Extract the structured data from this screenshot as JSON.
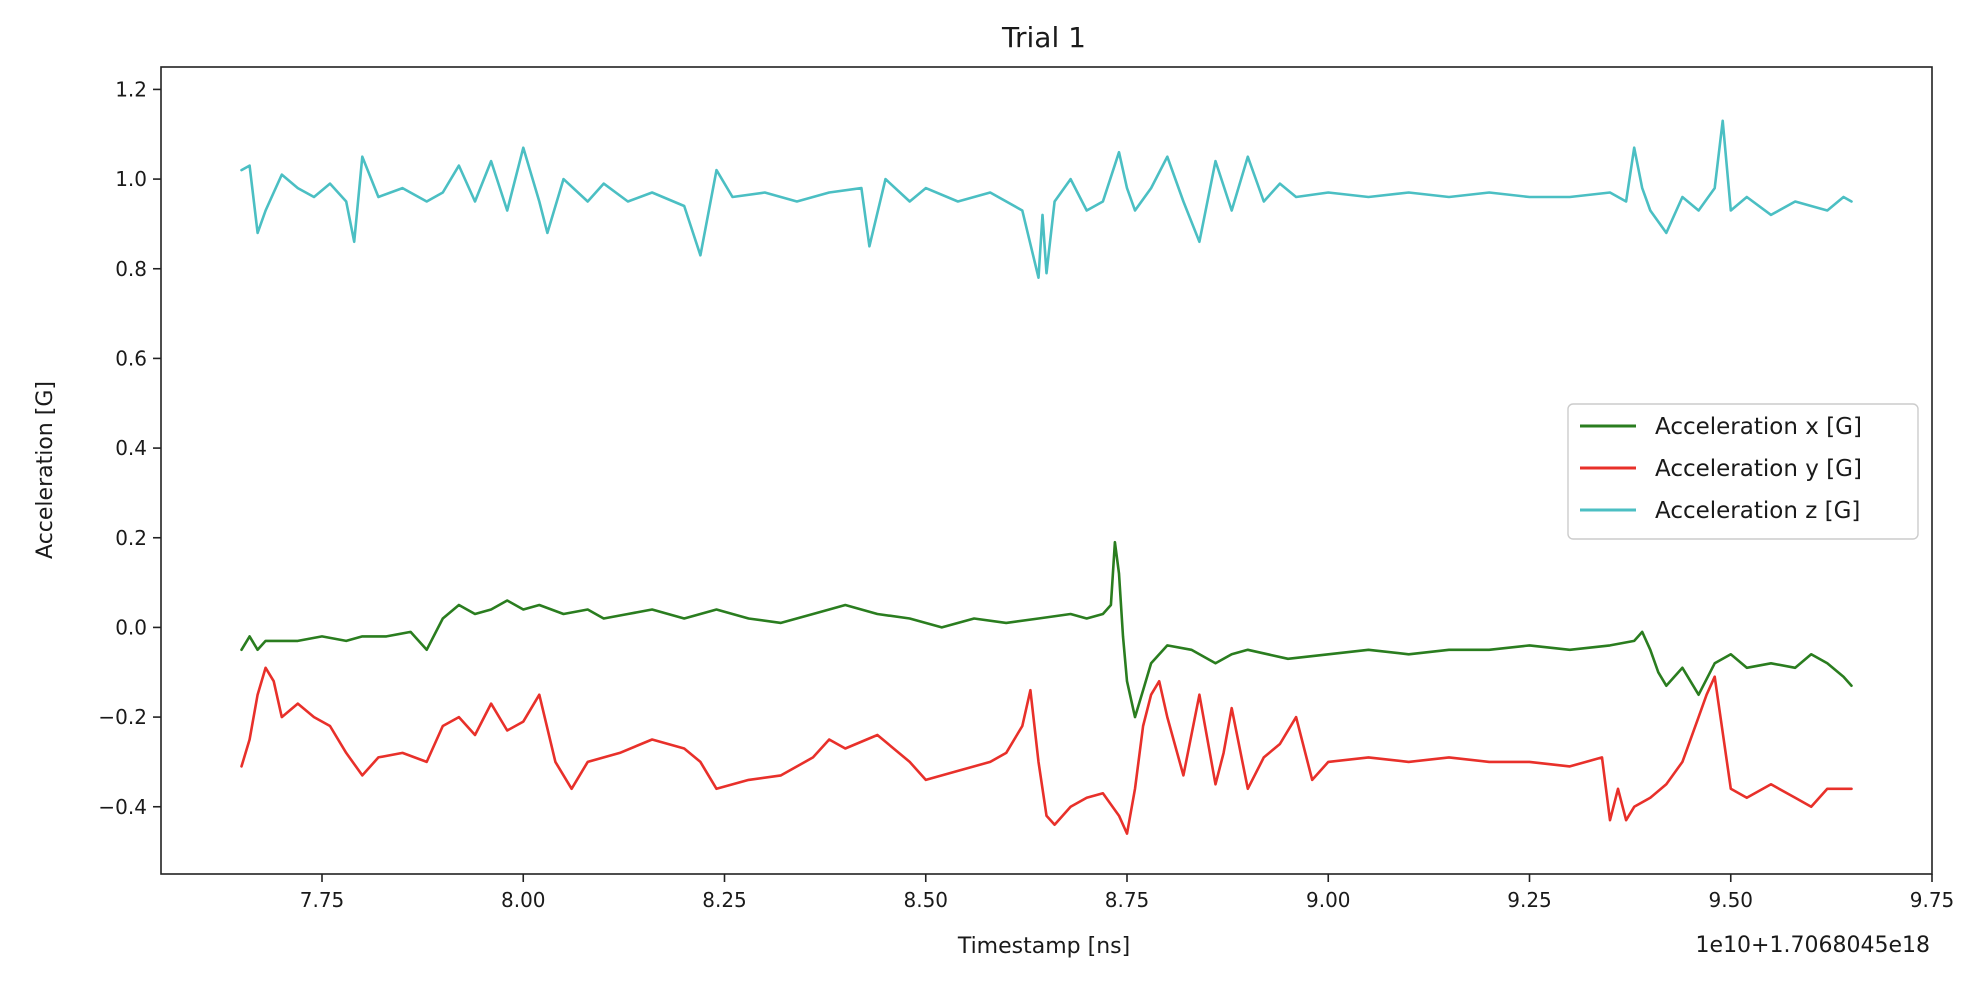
{
  "chart_data": {
    "type": "line",
    "title": "Trial 1",
    "xlabel": "Timestamp [ns]",
    "ylabel": "Acceleration [G]",
    "offset_label": "1e10+1.7068045e18",
    "xlim": [
      7.55,
      9.75
    ],
    "ylim": [
      -0.55,
      1.25
    ],
    "xticks": [
      7.75,
      8.0,
      8.25,
      8.5,
      8.75,
      9.0,
      9.25,
      9.5,
      9.75
    ],
    "xtick_labels": [
      "7.75",
      "8.00",
      "8.25",
      "8.50",
      "8.75",
      "9.00",
      "9.25",
      "9.50",
      "9.75"
    ],
    "yticks": [
      -0.4,
      -0.2,
      0.0,
      0.2,
      0.4,
      0.6,
      0.8,
      1.0,
      1.2
    ],
    "ytick_labels": [
      "−0.4",
      "−0.2",
      "0.0",
      "0.2",
      "0.4",
      "0.6",
      "0.8",
      "1.0",
      "1.2"
    ],
    "grid": false,
    "legend_position": "center-right",
    "series": [
      {
        "name": "Acceleration x [G]",
        "color": "#2a7d1f",
        "x": [
          7.65,
          7.66,
          7.67,
          7.68,
          7.7,
          7.72,
          7.75,
          7.78,
          7.8,
          7.83,
          7.86,
          7.88,
          7.9,
          7.92,
          7.94,
          7.96,
          7.98,
          8.0,
          8.02,
          8.05,
          8.08,
          8.1,
          8.13,
          8.16,
          8.2,
          8.24,
          8.28,
          8.32,
          8.36,
          8.38,
          8.4,
          8.44,
          8.48,
          8.52,
          8.56,
          8.6,
          8.64,
          8.68,
          8.7,
          8.72,
          8.73,
          8.735,
          8.74,
          8.745,
          8.75,
          8.76,
          8.77,
          8.78,
          8.8,
          8.83,
          8.86,
          8.88,
          8.9,
          8.95,
          9.0,
          9.05,
          9.1,
          9.15,
          9.2,
          9.25,
          9.3,
          9.35,
          9.38,
          9.39,
          9.4,
          9.41,
          9.42,
          9.44,
          9.46,
          9.48,
          9.5,
          9.52,
          9.55,
          9.58,
          9.6,
          9.62,
          9.64,
          9.65
        ],
        "y": [
          -0.05,
          -0.02,
          -0.05,
          -0.03,
          -0.03,
          -0.03,
          -0.02,
          -0.03,
          -0.02,
          -0.02,
          -0.01,
          -0.05,
          0.02,
          0.05,
          0.03,
          0.04,
          0.06,
          0.04,
          0.05,
          0.03,
          0.04,
          0.02,
          0.03,
          0.04,
          0.02,
          0.04,
          0.02,
          0.01,
          0.03,
          0.04,
          0.05,
          0.03,
          0.02,
          0.0,
          0.02,
          0.01,
          0.02,
          0.03,
          0.02,
          0.03,
          0.05,
          0.19,
          0.12,
          -0.02,
          -0.12,
          -0.2,
          -0.14,
          -0.08,
          -0.04,
          -0.05,
          -0.08,
          -0.06,
          -0.05,
          -0.07,
          -0.06,
          -0.05,
          -0.06,
          -0.05,
          -0.05,
          -0.04,
          -0.05,
          -0.04,
          -0.03,
          -0.01,
          -0.05,
          -0.1,
          -0.13,
          -0.09,
          -0.15,
          -0.08,
          -0.06,
          -0.09,
          -0.08,
          -0.09,
          -0.06,
          -0.08,
          -0.11,
          -0.13
        ]
      },
      {
        "name": "Acceleration y [G]",
        "color": "#e8302a",
        "x": [
          7.65,
          7.66,
          7.67,
          7.68,
          7.69,
          7.7,
          7.72,
          7.74,
          7.76,
          7.78,
          7.8,
          7.82,
          7.85,
          7.88,
          7.9,
          7.92,
          7.94,
          7.96,
          7.98,
          8.0,
          8.02,
          8.04,
          8.06,
          8.08,
          8.12,
          8.16,
          8.2,
          8.22,
          8.24,
          8.28,
          8.32,
          8.36,
          8.38,
          8.4,
          8.44,
          8.48,
          8.5,
          8.54,
          8.58,
          8.6,
          8.62,
          8.63,
          8.64,
          8.65,
          8.66,
          8.68,
          8.7,
          8.72,
          8.74,
          8.75,
          8.76,
          8.77,
          8.78,
          8.79,
          8.8,
          8.82,
          8.84,
          8.86,
          8.87,
          8.88,
          8.9,
          8.92,
          8.94,
          8.96,
          8.98,
          9.0,
          9.05,
          9.1,
          9.15,
          9.2,
          9.25,
          9.3,
          9.34,
          9.35,
          9.36,
          9.37,
          9.38,
          9.4,
          9.42,
          9.44,
          9.46,
          9.47,
          9.48,
          9.5,
          9.52,
          9.55,
          9.58,
          9.6,
          9.62,
          9.65
        ],
        "y": [
          -0.31,
          -0.25,
          -0.15,
          -0.09,
          -0.12,
          -0.2,
          -0.17,
          -0.2,
          -0.22,
          -0.28,
          -0.33,
          -0.29,
          -0.28,
          -0.3,
          -0.22,
          -0.2,
          -0.24,
          -0.17,
          -0.23,
          -0.21,
          -0.15,
          -0.3,
          -0.36,
          -0.3,
          -0.28,
          -0.25,
          -0.27,
          -0.3,
          -0.36,
          -0.34,
          -0.33,
          -0.29,
          -0.25,
          -0.27,
          -0.24,
          -0.3,
          -0.34,
          -0.32,
          -0.3,
          -0.28,
          -0.22,
          -0.14,
          -0.3,
          -0.42,
          -0.44,
          -0.4,
          -0.38,
          -0.37,
          -0.42,
          -0.46,
          -0.36,
          -0.22,
          -0.15,
          -0.12,
          -0.2,
          -0.33,
          -0.15,
          -0.35,
          -0.28,
          -0.18,
          -0.36,
          -0.29,
          -0.26,
          -0.2,
          -0.34,
          -0.3,
          -0.29,
          -0.3,
          -0.29,
          -0.3,
          -0.3,
          -0.31,
          -0.29,
          -0.43,
          -0.36,
          -0.43,
          -0.4,
          -0.38,
          -0.35,
          -0.3,
          -0.2,
          -0.15,
          -0.11,
          -0.36,
          -0.38,
          -0.35,
          -0.38,
          -0.4,
          -0.36,
          -0.36
        ]
      },
      {
        "name": "Acceleration z [G]",
        "color": "#4bbfc3",
        "x": [
          7.65,
          7.66,
          7.67,
          7.68,
          7.69,
          7.7,
          7.72,
          7.74,
          7.76,
          7.78,
          7.79,
          7.8,
          7.82,
          7.85,
          7.88,
          7.9,
          7.92,
          7.94,
          7.96,
          7.98,
          8.0,
          8.02,
          8.03,
          8.05,
          8.08,
          8.1,
          8.13,
          8.16,
          8.2,
          8.22,
          8.24,
          8.26,
          8.3,
          8.34,
          8.38,
          8.42,
          8.43,
          8.45,
          8.48,
          8.5,
          8.54,
          8.58,
          8.62,
          8.64,
          8.645,
          8.65,
          8.66,
          8.68,
          8.7,
          8.72,
          8.74,
          8.75,
          8.76,
          8.78,
          8.8,
          8.82,
          8.84,
          8.86,
          8.88,
          8.9,
          8.92,
          8.94,
          8.96,
          9.0,
          9.05,
          9.1,
          9.15,
          9.2,
          9.25,
          9.3,
          9.35,
          9.37,
          9.38,
          9.39,
          9.4,
          9.42,
          9.44,
          9.46,
          9.48,
          9.49,
          9.5,
          9.52,
          9.55,
          9.58,
          9.6,
          9.62,
          9.64,
          9.65
        ],
        "y": [
          1.02,
          1.03,
          0.88,
          0.93,
          0.97,
          1.01,
          0.98,
          0.96,
          0.99,
          0.95,
          0.86,
          1.05,
          0.96,
          0.98,
          0.95,
          0.97,
          1.03,
          0.95,
          1.04,
          0.93,
          1.07,
          0.95,
          0.88,
          1.0,
          0.95,
          0.99,
          0.95,
          0.97,
          0.94,
          0.83,
          1.02,
          0.96,
          0.97,
          0.95,
          0.97,
          0.98,
          0.85,
          1.0,
          0.95,
          0.98,
          0.95,
          0.97,
          0.93,
          0.78,
          0.92,
          0.79,
          0.95,
          1.0,
          0.93,
          0.95,
          1.06,
          0.98,
          0.93,
          0.98,
          1.05,
          0.95,
          0.86,
          1.04,
          0.93,
          1.05,
          0.95,
          0.99,
          0.96,
          0.97,
          0.96,
          0.97,
          0.96,
          0.97,
          0.96,
          0.96,
          0.97,
          0.95,
          1.07,
          0.98,
          0.93,
          0.88,
          0.96,
          0.93,
          0.98,
          1.13,
          0.93,
          0.96,
          0.92,
          0.95,
          0.94,
          0.93,
          0.96,
          0.95
        ]
      }
    ]
  }
}
